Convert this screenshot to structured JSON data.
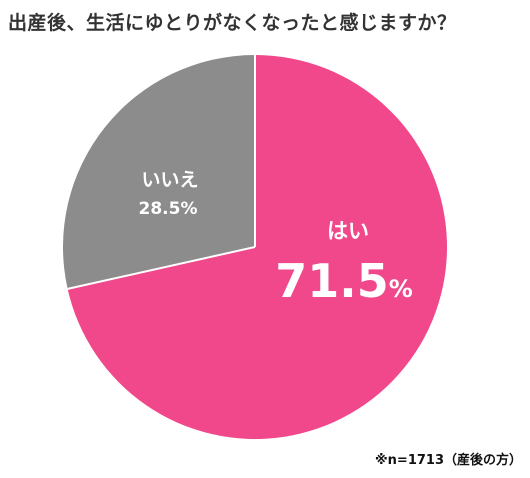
{
  "title": "出産後、生活にゆとりがなくなったと感じますか？",
  "note": "※n=1713（産後の方）",
  "chart_data": {
    "type": "pie",
    "start_angle_deg": 0,
    "direction": "clockwise",
    "slices": [
      {
        "label": "はい",
        "value": 71.5,
        "display_number": "71.5",
        "display_unit": "%",
        "color": "#f0488a"
      },
      {
        "label": "いいえ",
        "value": 28.5,
        "display_value": "28.5%",
        "color": "#8c8c8c"
      }
    ]
  }
}
